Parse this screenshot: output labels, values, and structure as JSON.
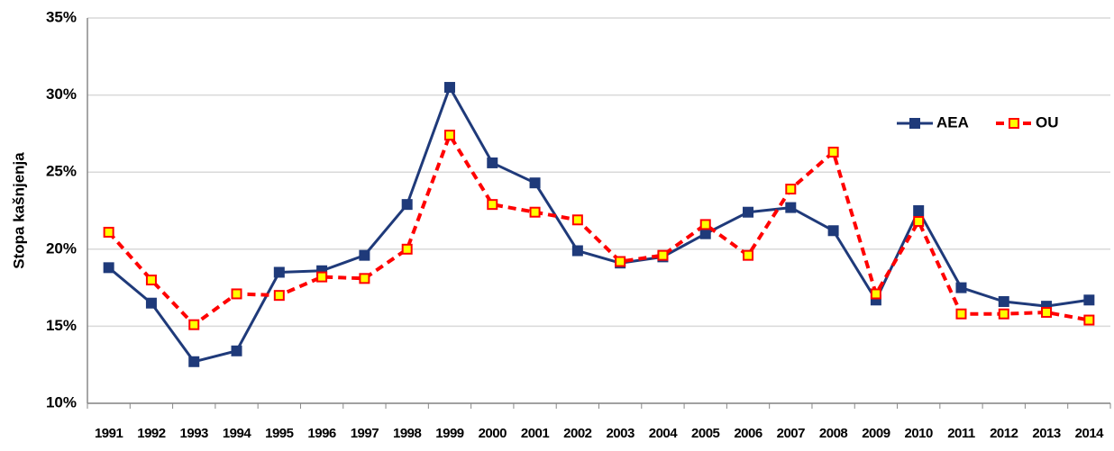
{
  "chart_data": {
    "type": "line",
    "y_label": "Stopa kašnjenja",
    "categories": [
      "1991",
      "1992",
      "1993",
      "1994",
      "1995",
      "1996",
      "1997",
      "1998",
      "1999",
      "2000",
      "2001",
      "2002",
      "2003",
      "2004",
      "2005",
      "2006",
      "2007",
      "2008",
      "2009",
      "2010",
      "2011",
      "2012",
      "2013",
      "2014"
    ],
    "series": [
      {
        "name": "AEA",
        "color": "#1f3a7a",
        "values": [
          18.8,
          16.5,
          12.7,
          13.4,
          18.5,
          18.6,
          19.6,
          22.9,
          30.5,
          25.6,
          24.3,
          19.9,
          19.1,
          19.5,
          21.0,
          22.4,
          22.7,
          21.2,
          16.7,
          22.5,
          17.5,
          16.6,
          16.3,
          16.7
        ]
      },
      {
        "name": "OU",
        "color": "#ff0000",
        "values": [
          21.1,
          18.0,
          15.1,
          17.1,
          17.0,
          18.2,
          18.1,
          20.0,
          27.4,
          22.9,
          22.4,
          21.9,
          19.2,
          19.6,
          21.6,
          19.6,
          23.9,
          26.3,
          17.1,
          21.8,
          15.8,
          15.8,
          15.9,
          15.4
        ]
      }
    ],
    "ylim": [
      10,
      35
    ],
    "yticks": [
      {
        "value": 10,
        "label": "10%"
      },
      {
        "value": 15,
        "label": "15%"
      },
      {
        "value": 20,
        "label": "20%"
      },
      {
        "value": 25,
        "label": "25%"
      },
      {
        "value": 30,
        "label": "30%"
      },
      {
        "value": 35,
        "label": "35%"
      }
    ],
    "grid": true,
    "legend": "upper right"
  }
}
